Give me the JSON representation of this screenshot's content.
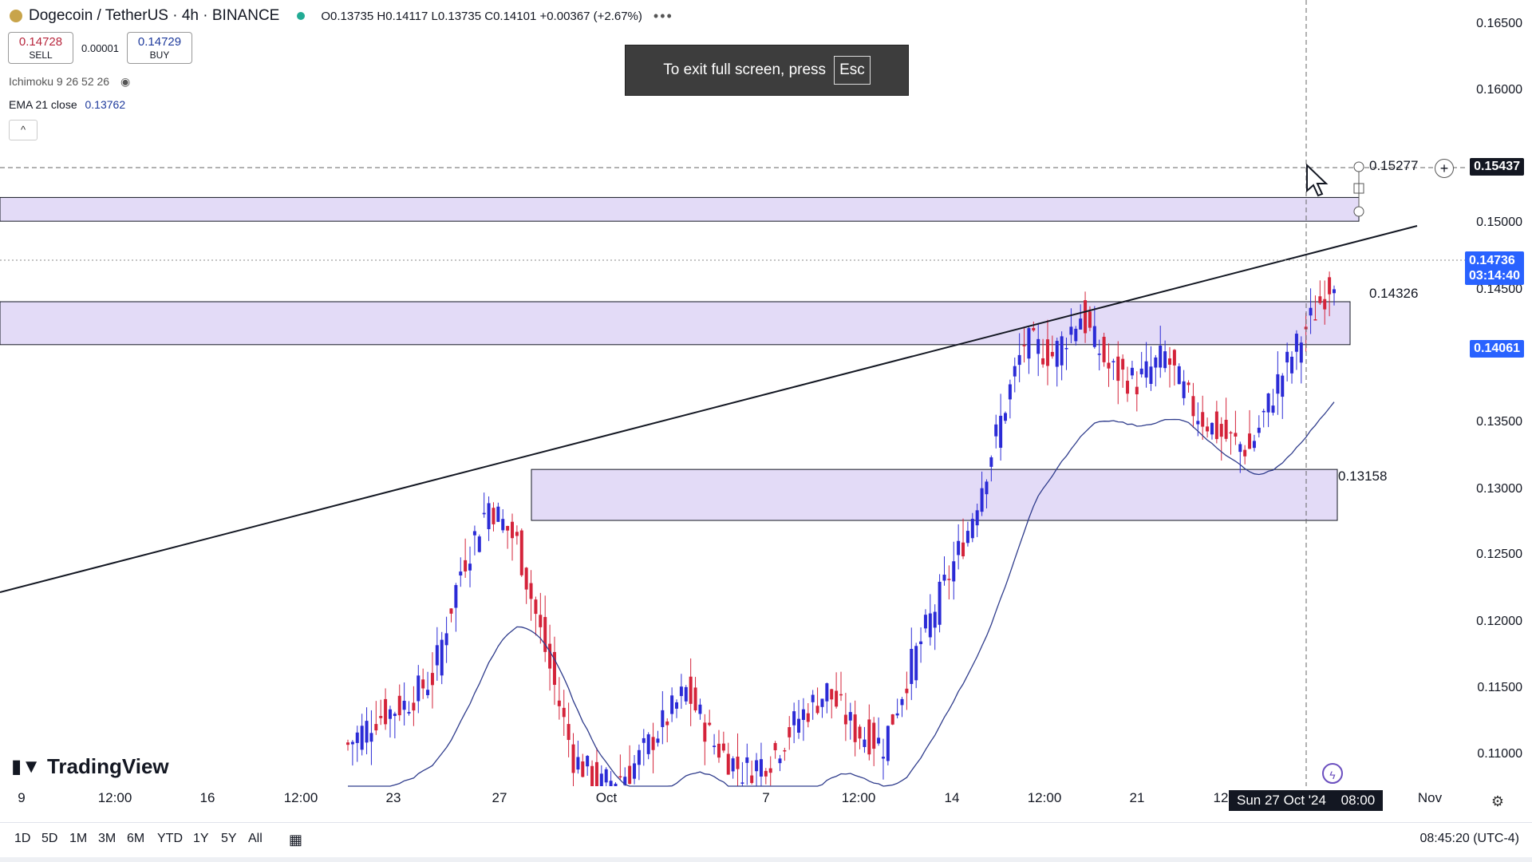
{
  "header": {
    "symbol": "Dogecoin / TetherUS · 4h · BINANCE",
    "ohlc": "O0.13735 H0.14117 L0.13735 C0.14101 +0.00367 (+2.67%)",
    "more_icon": "more-dots-icon"
  },
  "trade": {
    "sell_price": "0.14728",
    "sell_label": "SELL",
    "spread": "0.00001",
    "buy_price": "0.14729",
    "buy_label": "BUY"
  },
  "indicators": {
    "ichimoku": "Ichimoku 9 26 52 26",
    "ema_label": "EMA 21 close",
    "ema_value": "0.13762"
  },
  "toast": {
    "text": "To exit full screen, press",
    "key": "Esc"
  },
  "price_scale": {
    "ticks": [
      "0.16500",
      "0.16000",
      "0.15000",
      "0.14500",
      "0.13500",
      "0.13000",
      "0.12500",
      "0.12000",
      "0.11500",
      "0.11000"
    ],
    "crosshair_price": "0.15437",
    "current_price": "0.14736",
    "countdown": "03:14:40",
    "ema_price": "0.14061"
  },
  "zones": {
    "top_label": "0.15277",
    "mid_label": "0.14326",
    "low_label": "0.13158"
  },
  "time_scale": {
    "ticks": [
      "9",
      "12:00",
      "16",
      "12:00",
      "23",
      "27",
      "Oct",
      "7",
      "12:00",
      "14",
      "12:00",
      "21",
      "12",
      "Nov"
    ],
    "crosshair_time": "Sun 27 Oct '24",
    "crosshair_hour": "08:00"
  },
  "bottom_bar": {
    "ranges": [
      "1D",
      "5D",
      "1M",
      "3M",
      "6M",
      "YTD",
      "1Y",
      "5Y",
      "All"
    ],
    "clock": "08:45:20 (UTC-4)"
  },
  "brand": {
    "name": "TradingView"
  },
  "colors": {
    "up": "#2b2bd6",
    "down": "#d4233a",
    "zone": "#e3dbf7",
    "ema": "#2f3c8c"
  },
  "chart_data": {
    "type": "candlestick",
    "symbol": "DOGE/USDT",
    "ylim": [
      0.108,
      0.166
    ],
    "close_series": [
      0.112,
      0.114,
      0.115,
      0.117,
      0.125,
      0.13,
      0.127,
      0.119,
      0.111,
      0.109,
      0.11,
      0.113,
      0.116,
      0.112,
      0.11,
      0.111,
      0.114,
      0.116,
      0.113,
      0.112,
      0.118,
      0.123,
      0.128,
      0.135,
      0.142,
      0.141,
      0.144,
      0.14,
      0.139,
      0.141,
      0.137,
      0.135,
      0.134,
      0.139,
      0.143,
      0.147
    ]
  }
}
